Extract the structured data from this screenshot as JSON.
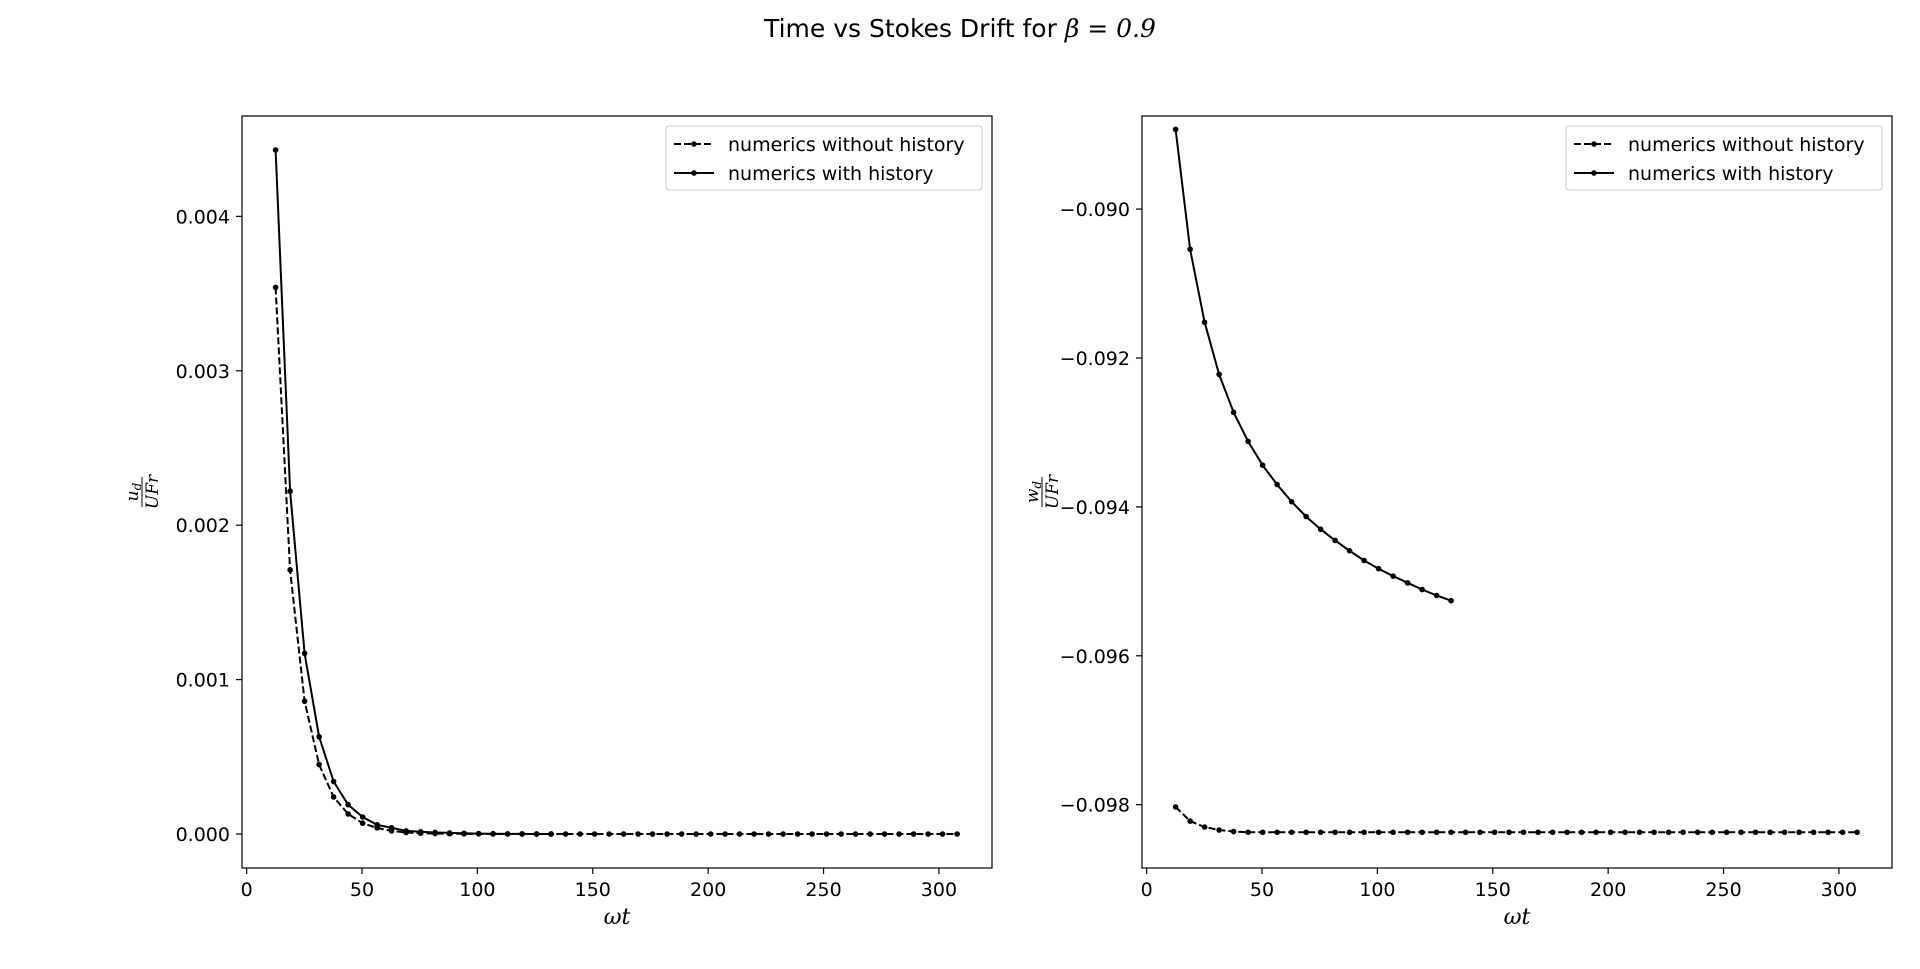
{
  "figure": {
    "title_prefix": "Time vs Stokes Drift for ",
    "title_math": "β = 0.9"
  },
  "chart_data": [
    {
      "type": "line",
      "xlabel": "ωt",
      "ylabel": {
        "numerator": "u",
        "numerator_sub": "d",
        "denominator": "UFr"
      },
      "xlim": [
        -2,
        323
      ],
      "ylim": [
        -0.00022,
        0.00465
      ],
      "xticks": [
        0,
        50,
        100,
        150,
        200,
        250,
        300
      ],
      "yticks": [
        0.0,
        0.001,
        0.002,
        0.003,
        0.004
      ],
      "ytick_labels": [
        "0.000",
        "0.001",
        "0.002",
        "0.003",
        "0.004"
      ],
      "legend_position": "upper right",
      "legend": [
        "numerics without history",
        "numerics with history"
      ],
      "series": [
        {
          "name": "numerics without history",
          "style": "dashed",
          "color": "#000000",
          "x": [
            12.57,
            18.85,
            25.13,
            31.42,
            37.7,
            43.98,
            50.27,
            56.55,
            62.83,
            69.12,
            75.4,
            81.68,
            87.96,
            94.25,
            100.53,
            106.81,
            113.1,
            119.38,
            125.66,
            131.95,
            138.23,
            144.51,
            150.8,
            157.08,
            163.36,
            169.65,
            175.93,
            182.21,
            188.5,
            194.78,
            201.06,
            207.35,
            213.63,
            219.91,
            226.19,
            232.48,
            238.76,
            245.04,
            251.33,
            257.61,
            263.89,
            270.18,
            276.46,
            282.74,
            289.03,
            295.31,
            301.59,
            307.88
          ],
          "y": [
            0.00354,
            0.00171,
            0.00086,
            0.00045,
            0.00024,
            0.00013,
            7e-05,
            4e-05,
            2e-05,
            1e-05,
            5e-06,
            3e-06,
            2e-06,
            1e-06,
            5e-07,
            3e-07,
            2e-07,
            1e-07,
            1e-07,
            0,
            0,
            0,
            0,
            0,
            0,
            0,
            0,
            0,
            0,
            0,
            0,
            0,
            0,
            0,
            0,
            0,
            0,
            0,
            0,
            0,
            0,
            0,
            0,
            0,
            0,
            0,
            0,
            0
          ]
        },
        {
          "name": "numerics with history",
          "style": "solid",
          "color": "#000000",
          "x": [
            12.57,
            18.85,
            25.13,
            31.42,
            37.7,
            43.98,
            50.27,
            56.55,
            62.83,
            69.12,
            75.4,
            81.68,
            87.96,
            94.25,
            100.53,
            106.81,
            113.1,
            119.38,
            125.66,
            131.95
          ],
          "y": [
            0.00443,
            0.00222,
            0.00117,
            0.00063,
            0.00034,
            0.00019,
            0.00011,
            6e-05,
            4e-05,
            2e-05,
            1.5e-05,
            1e-05,
            7e-06,
            5e-06,
            3e-06,
            2e-06,
            1e-06,
            1e-06,
            5e-07,
            3e-07
          ]
        }
      ]
    },
    {
      "type": "line",
      "xlabel": "ωt",
      "ylabel": {
        "numerator": "w",
        "numerator_sub": "d",
        "denominator": "UFr"
      },
      "xlim": [
        -2,
        323
      ],
      "ylim": [
        -0.09885,
        -0.08875
      ],
      "xticks": [
        0,
        50,
        100,
        150,
        200,
        250,
        300
      ],
      "yticks": [
        -0.098,
        -0.096,
        -0.094,
        -0.092,
        -0.09
      ],
      "ytick_labels": [
        "−0.098",
        "−0.096",
        "−0.094",
        "−0.092",
        "−0.090"
      ],
      "legend_position": "upper right",
      "legend": [
        "numerics without history",
        "numerics with history"
      ],
      "series": [
        {
          "name": "numerics without history",
          "style": "dashed",
          "color": "#000000",
          "x": [
            12.57,
            18.85,
            25.13,
            31.42,
            37.7,
            43.98,
            50.27,
            56.55,
            62.83,
            69.12,
            75.4,
            81.68,
            87.96,
            94.25,
            100.53,
            106.81,
            113.1,
            119.38,
            125.66,
            131.95,
            138.23,
            144.51,
            150.8,
            157.08,
            163.36,
            169.65,
            175.93,
            182.21,
            188.5,
            194.78,
            201.06,
            207.35,
            213.63,
            219.91,
            226.19,
            232.48,
            238.76,
            245.04,
            251.33,
            257.61,
            263.89,
            270.18,
            276.46,
            282.74,
            289.03,
            295.31,
            301.59,
            307.88
          ],
          "y": [
            -0.09803,
            -0.09822,
            -0.0983,
            -0.09834,
            -0.09836,
            -0.09837,
            -0.09837,
            -0.09837,
            -0.09837,
            -0.09837,
            -0.09837,
            -0.09837,
            -0.09837,
            -0.09837,
            -0.09837,
            -0.09837,
            -0.09837,
            -0.09837,
            -0.09837,
            -0.09837,
            -0.09837,
            -0.09837,
            -0.09837,
            -0.09837,
            -0.09837,
            -0.09837,
            -0.09837,
            -0.09837,
            -0.09837,
            -0.09837,
            -0.09837,
            -0.09837,
            -0.09837,
            -0.09837,
            -0.09837,
            -0.09837,
            -0.09837,
            -0.09837,
            -0.09837,
            -0.09837,
            -0.09837,
            -0.09837,
            -0.09837,
            -0.09837,
            -0.09837,
            -0.09837,
            -0.09837,
            -0.09837
          ]
        },
        {
          "name": "numerics with history",
          "style": "solid",
          "color": "#000000",
          "x": [
            12.57,
            18.85,
            25.13,
            31.42,
            37.7,
            43.98,
            50.27,
            56.55,
            62.83,
            69.12,
            75.4,
            81.68,
            87.96,
            94.25,
            100.53,
            106.81,
            113.1,
            119.38,
            125.66,
            131.95
          ],
          "y": [
            -0.08893,
            -0.09054,
            -0.09152,
            -0.09222,
            -0.09273,
            -0.09312,
            -0.09344,
            -0.0937,
            -0.09393,
            -0.09413,
            -0.0943,
            -0.09445,
            -0.09459,
            -0.09472,
            -0.09483,
            -0.09493,
            -0.09502,
            -0.09511,
            -0.09519,
            -0.09526
          ]
        }
      ]
    }
  ]
}
